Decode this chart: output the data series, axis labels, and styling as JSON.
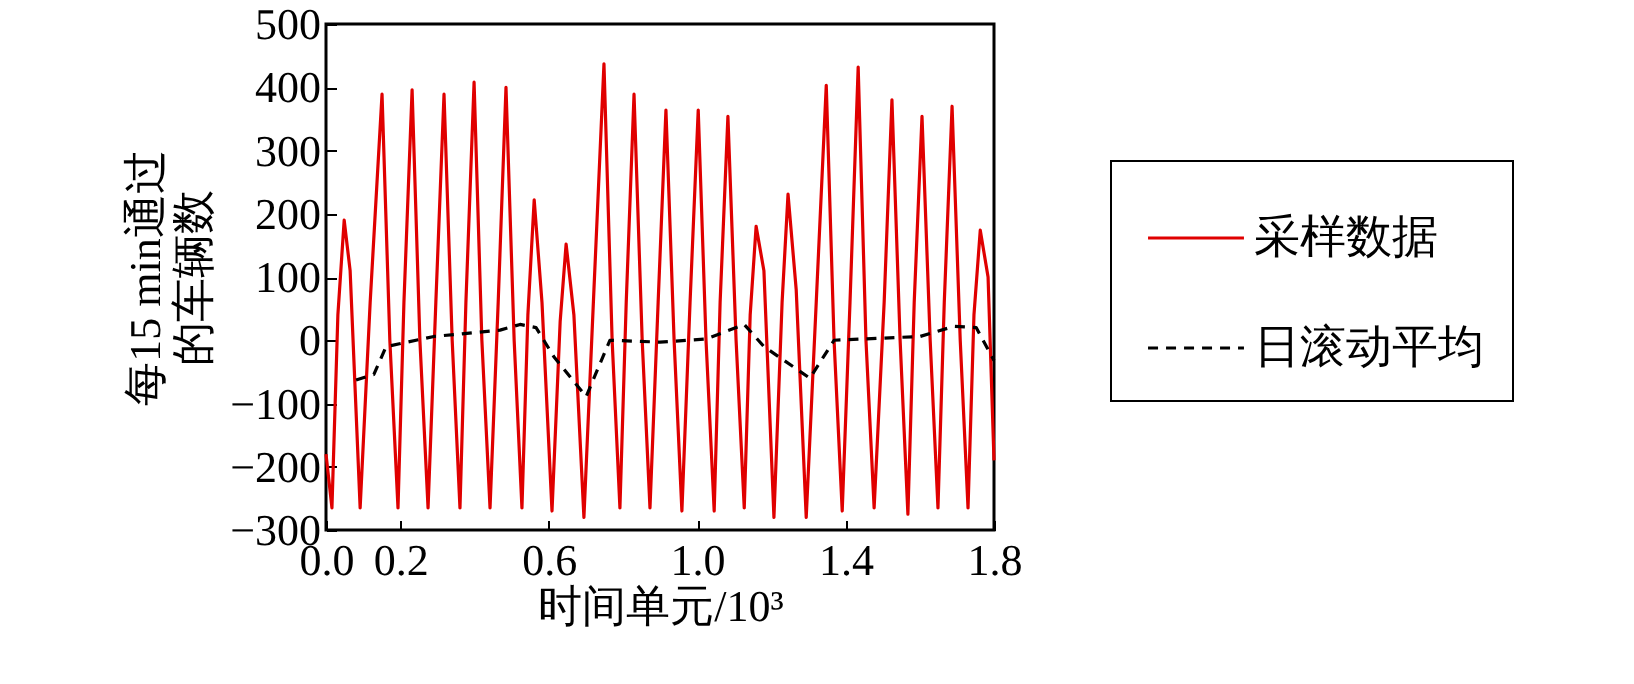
{
  "chart_data": {
    "type": "line",
    "xlabel": "时间单元/10³",
    "ylabel": "每15 min通过的车辆数",
    "xlim": [
      0,
      1.8
    ],
    "ylim": [
      -300,
      500
    ],
    "xticks": [
      {
        "value": 0,
        "label": "0.0"
      },
      {
        "value": 0.2,
        "label": "0.2"
      },
      {
        "value": 0.6,
        "label": "0.6"
      },
      {
        "value": 1.0,
        "label": "1.0"
      },
      {
        "value": 1.4,
        "label": "1.4"
      },
      {
        "value": 1.8,
        "label": "1.8"
      }
    ],
    "yticks": [
      -300,
      -200,
      -100,
      0,
      100,
      200,
      300,
      400,
      500
    ],
    "grid": false,
    "legend": "right",
    "series": [
      {
        "name": "采样数据",
        "color": "#e00000",
        "line_style": "solid",
        "x": [
          0,
          0.016,
          0.032,
          0.049,
          0.065,
          0.092,
          0.119,
          0.151,
          0.172,
          0.194,
          0.21,
          0.232,
          0.253,
          0.275,
          0.296,
          0.318,
          0.34,
          0.361,
          0.377,
          0.399,
          0.42,
          0.442,
          0.464,
          0.485,
          0.507,
          0.528,
          0.544,
          0.561,
          0.582,
          0.609,
          0.631,
          0.647,
          0.668,
          0.695,
          0.722,
          0.749,
          0.771,
          0.792,
          0.809,
          0.83,
          0.852,
          0.873,
          0.895,
          0.916,
          0.938,
          0.959,
          0.981,
          1.003,
          1.024,
          1.046,
          1.062,
          1.083,
          1.105,
          1.127,
          1.143,
          1.159,
          1.18,
          1.207,
          1.229,
          1.245,
          1.267,
          1.294,
          1.321,
          1.348,
          1.369,
          1.391,
          1.412,
          1.434,
          1.455,
          1.477,
          1.504,
          1.525,
          1.547,
          1.568,
          1.585,
          1.606,
          1.628,
          1.649,
          1.666,
          1.687,
          1.709,
          1.73,
          1.746,
          1.763,
          1.784,
          1.8
        ],
        "values": [
          -180,
          -265,
          40,
          190,
          110,
          -265,
          60,
          389,
          0,
          -265,
          60,
          396,
          0,
          -265,
          60,
          389,
          0,
          -265,
          60,
          408,
          0,
          -265,
          60,
          400,
          0,
          -265,
          40,
          222,
          60,
          -270,
          30,
          152,
          40,
          -280,
          80,
          437,
          0,
          -265,
          60,
          389,
          0,
          -265,
          60,
          364,
          0,
          -270,
          60,
          364,
          0,
          -270,
          60,
          354,
          0,
          -265,
          40,
          180,
          110,
          -280,
          60,
          231,
          80,
          -280,
          60,
          403,
          0,
          -270,
          60,
          432,
          0,
          -265,
          60,
          380,
          0,
          -275,
          60,
          354,
          0,
          -265,
          60,
          370,
          0,
          -265,
          40,
          174,
          100,
          -190
        ]
      },
      {
        "name": "日滚动平均",
        "color": "#000000",
        "line_style": "dashed",
        "x": [
          0.081,
          0.129,
          0.162,
          0.291,
          0.469,
          0.523,
          0.566,
          0.614,
          0.701,
          0.765,
          0.9,
          1.024,
          1.127,
          1.18,
          1.304,
          1.369,
          1.601,
          1.692,
          1.752,
          1.8
        ],
        "values": [
          -63,
          -54,
          -10,
          6,
          16,
          25,
          20,
          -26,
          -89,
          0,
          -3,
          2,
          25,
          -10,
          -60,
          0,
          6,
          22,
          20,
          -32
        ]
      }
    ]
  }
}
